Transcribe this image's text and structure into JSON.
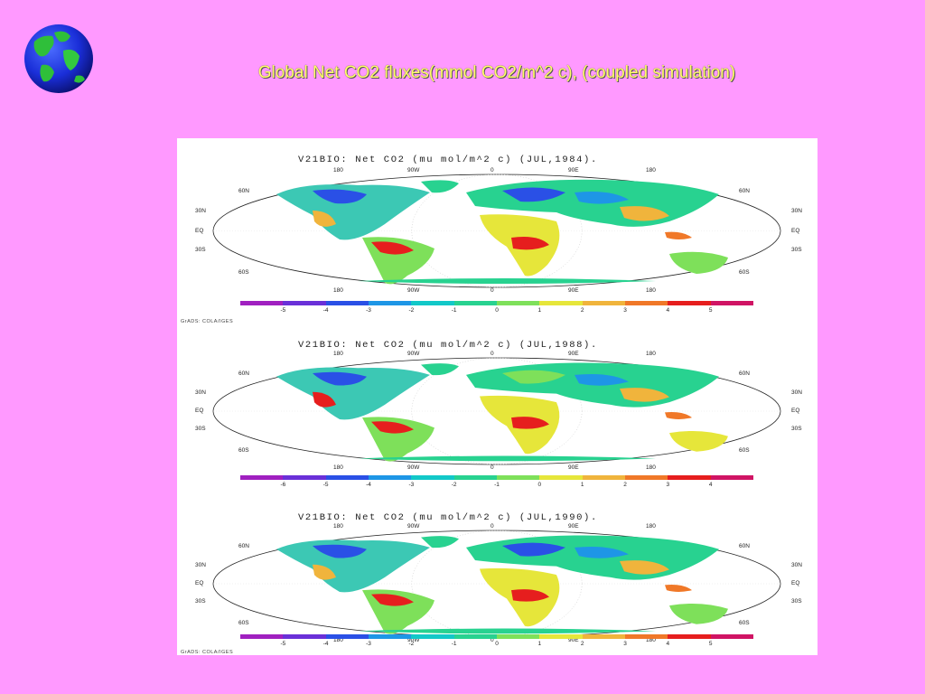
{
  "slide": {
    "title": "Global Net CO2 fluxes(mmol CO2/m^2 c), (coupled simulation)",
    "globe_icon": "globe-icon",
    "background_color": "#ff99ff",
    "title_color": "#ffff66"
  },
  "panels": [
    {
      "title": "V21BIO: Net CO2 (mu mol/m^2 c) (JUL,1984).",
      "lon_labels": [
        "180",
        "90W",
        "0",
        "90E",
        "180"
      ],
      "lat_labels_left": [
        "60N",
        "30N",
        "EQ",
        "30S",
        "60S"
      ],
      "lat_labels_right": [
        "60N",
        "30N",
        "EQ",
        "30S",
        "60S"
      ],
      "colorbar_ticks": [
        "-5",
        "-4",
        "-3",
        "-2",
        "-1",
        "0",
        "1",
        "2",
        "3",
        "4",
        "5"
      ],
      "footer": "GrADS: COLA/IGES"
    },
    {
      "title": "V21BIO: Net CO2 (mu mol/m^2 c) (JUL,1988).",
      "lon_labels": [
        "180",
        "90W",
        "0",
        "90E",
        "180"
      ],
      "lat_labels_left": [
        "60N",
        "30N",
        "EQ",
        "30S",
        "60S"
      ],
      "lat_labels_right": [
        "60N",
        "30N",
        "EQ",
        "30S",
        "60S"
      ],
      "colorbar_ticks": [
        "-6",
        "-5",
        "-4",
        "-3",
        "-2",
        "-1",
        "0",
        "1",
        "2",
        "3",
        "4"
      ],
      "footer": ""
    },
    {
      "title": "V21BIO: Net CO2 (mu mol/m^2 c) (JUL,1990).",
      "lon_labels": [
        "180",
        "90W",
        "0",
        "90E",
        "180"
      ],
      "lat_labels_left": [
        "60N",
        "30N",
        "EQ",
        "30S",
        "60S"
      ],
      "lat_labels_right": [
        "60N",
        "30N",
        "EQ",
        "30S",
        "60S"
      ],
      "colorbar_ticks": [
        "-5",
        "-4",
        "-3",
        "-2",
        "-1",
        "0",
        "1",
        "2",
        "3",
        "4",
        "5"
      ],
      "footer": "GrADS: COLA/IGES"
    }
  ],
  "colorbar_colors": [
    "#a020c0",
    "#6a30d8",
    "#2a50e6",
    "#1e96e6",
    "#12c8c8",
    "#28d290",
    "#7ee05a",
    "#e6e63a",
    "#f0b43c",
    "#f07828",
    "#e61e1e",
    "#d01464"
  ]
}
